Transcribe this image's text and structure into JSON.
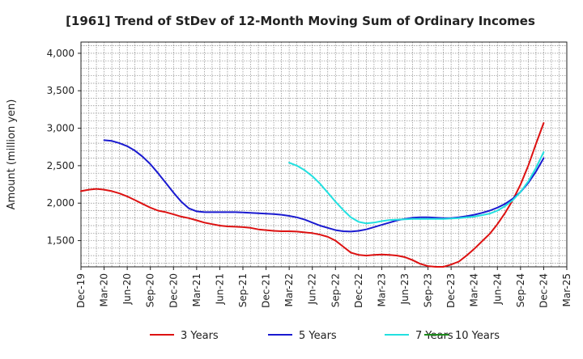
{
  "chart_data": {
    "type": "line",
    "title": "[1961]  Trend of StDev of 12-Month Moving Sum of Ordinary Incomes",
    "xlabel": "",
    "ylabel": "Amount (million yen)",
    "x_ticks": [
      "Dec-19",
      "Mar-20",
      "Jun-20",
      "Sep-20",
      "Dec-20",
      "Mar-21",
      "Jun-21",
      "Sep-21",
      "Dec-21",
      "Mar-22",
      "Jun-22",
      "Sep-22",
      "Dec-22",
      "Mar-23",
      "Jun-23",
      "Sep-23",
      "Dec-23",
      "Mar-24",
      "Jun-24",
      "Sep-24",
      "Dec-24",
      "Mar-25"
    ],
    "y_ticks": [
      "1,500",
      "2,000",
      "2,500",
      "3,000",
      "3,500",
      "4,000"
    ],
    "ylim": [
      1150,
      4150
    ],
    "grid": true,
    "legend_position": "bottom",
    "series": [
      {
        "name": "3 Years",
        "color": "#dd1111",
        "x": [
          "Dec-19",
          "Jan-20",
          "Feb-20",
          "Mar-20",
          "Apr-20",
          "May-20",
          "Jun-20",
          "Jul-20",
          "Aug-20",
          "Sep-20",
          "Oct-20",
          "Nov-20",
          "Dec-20",
          "Jan-21",
          "Feb-21",
          "Mar-21",
          "Apr-21",
          "May-21",
          "Jun-21",
          "Jul-21",
          "Aug-21",
          "Sep-21",
          "Oct-21",
          "Nov-21",
          "Dec-21",
          "Jan-22",
          "Feb-22",
          "Mar-22",
          "Apr-22",
          "May-22",
          "Jun-22",
          "Jul-22",
          "Aug-22",
          "Sep-22",
          "Oct-22",
          "Nov-22",
          "Dec-22",
          "Jan-23",
          "Feb-23",
          "Mar-23",
          "Apr-23",
          "May-23",
          "Jun-23",
          "Jul-23",
          "Aug-23",
          "Sep-23",
          "Oct-23",
          "Nov-23",
          "Dec-23",
          "Jan-24",
          "Feb-24",
          "Mar-24",
          "Apr-24",
          "May-24",
          "Jun-24",
          "Jul-24",
          "Aug-24",
          "Sep-24",
          "Oct-24",
          "Nov-24",
          "Dec-24"
        ],
        "values": [
          2160,
          2180,
          2190,
          2180,
          2160,
          2130,
          2090,
          2040,
          1990,
          1940,
          1900,
          1880,
          1850,
          1820,
          1800,
          1770,
          1740,
          1720,
          1700,
          1690,
          1685,
          1680,
          1670,
          1650,
          1640,
          1630,
          1625,
          1625,
          1620,
          1610,
          1600,
          1580,
          1550,
          1500,
          1420,
          1340,
          1310,
          1300,
          1310,
          1315,
          1310,
          1300,
          1280,
          1240,
          1190,
          1160,
          1150,
          1150,
          1180,
          1220,
          1300,
          1390,
          1490,
          1590,
          1720,
          1870,
          2040,
          2250,
          2500,
          2790,
          3070
        ]
      },
      {
        "name": "5 Years",
        "color": "#1a1ad0",
        "x": [
          "Mar-20",
          "Apr-20",
          "May-20",
          "Jun-20",
          "Jul-20",
          "Aug-20",
          "Sep-20",
          "Oct-20",
          "Nov-20",
          "Dec-20",
          "Jan-21",
          "Feb-21",
          "Mar-21",
          "Apr-21",
          "May-21",
          "Jun-21",
          "Jul-21",
          "Aug-21",
          "Sep-21",
          "Oct-21",
          "Nov-21",
          "Dec-21",
          "Jan-22",
          "Feb-22",
          "Mar-22",
          "Apr-22",
          "May-22",
          "Jun-22",
          "Jul-22",
          "Aug-22",
          "Sep-22",
          "Oct-22",
          "Nov-22",
          "Dec-22",
          "Jan-23",
          "Feb-23",
          "Mar-23",
          "Apr-23",
          "May-23",
          "Jun-23",
          "Jul-23",
          "Aug-23",
          "Sep-23",
          "Oct-23",
          "Nov-23",
          "Dec-23",
          "Jan-24",
          "Feb-24",
          "Mar-24",
          "Apr-24",
          "May-24",
          "Jun-24",
          "Jul-24",
          "Aug-24",
          "Sep-24",
          "Oct-24",
          "Nov-24",
          "Dec-24"
        ],
        "values": [
          2840,
          2830,
          2800,
          2760,
          2700,
          2620,
          2520,
          2400,
          2270,
          2140,
          2020,
          1930,
          1890,
          1880,
          1880,
          1880,
          1880,
          1880,
          1875,
          1870,
          1865,
          1860,
          1855,
          1845,
          1830,
          1810,
          1780,
          1740,
          1700,
          1670,
          1640,
          1625,
          1620,
          1630,
          1650,
          1680,
          1710,
          1740,
          1770,
          1790,
          1805,
          1810,
          1810,
          1805,
          1800,
          1800,
          1810,
          1825,
          1845,
          1870,
          1900,
          1940,
          1990,
          2060,
          2150,
          2270,
          2420,
          2600
        ]
      },
      {
        "name": "7 Years",
        "color": "#22e0e0",
        "x": [
          "Mar-22",
          "Apr-22",
          "May-22",
          "Jun-22",
          "Jul-22",
          "Aug-22",
          "Sep-22",
          "Oct-22",
          "Nov-22",
          "Dec-22",
          "Jan-23",
          "Feb-23",
          "Mar-23",
          "Apr-23",
          "May-23",
          "Jun-23",
          "Jul-23",
          "Aug-23",
          "Sep-23",
          "Oct-23",
          "Nov-23",
          "Dec-23",
          "Jan-24",
          "Feb-24",
          "Mar-24",
          "Apr-24",
          "May-24",
          "Jun-24",
          "Jul-24",
          "Aug-24",
          "Sep-24",
          "Oct-24",
          "Nov-24",
          "Dec-24"
        ],
        "values": [
          2540,
          2500,
          2440,
          2360,
          2260,
          2140,
          2020,
          1910,
          1810,
          1750,
          1730,
          1740,
          1760,
          1775,
          1780,
          1785,
          1790,
          1790,
          1790,
          1790,
          1790,
          1795,
          1800,
          1810,
          1820,
          1840,
          1860,
          1900,
          1960,
          2040,
          2150,
          2290,
          2470,
          2680
        ]
      },
      {
        "name": "10 Years",
        "color": "#1c8a1c",
        "x": [],
        "values": []
      }
    ]
  }
}
